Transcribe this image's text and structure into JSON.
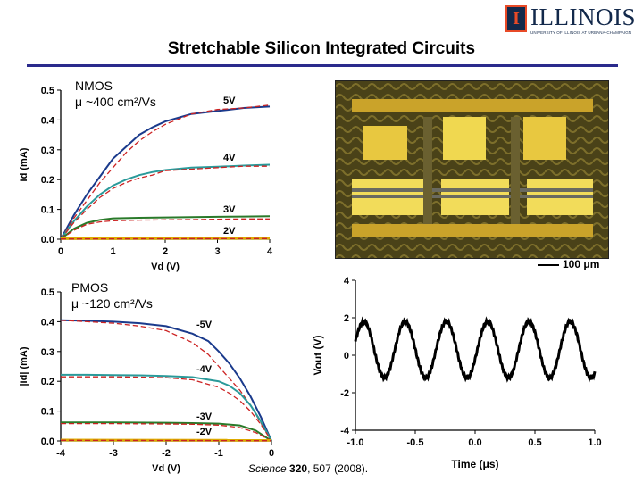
{
  "title": "Stretchable Silicon Integrated Circuits",
  "logo": {
    "word": "ILLINOIS",
    "subtitle": "UNIVERSITY OF ILLINOIS AT URBANA-CHAMPAIGN",
    "icon": "block-i-logo-icon"
  },
  "micrograph": {
    "scale_label": "100 μm"
  },
  "citation": {
    "journal": "Science",
    "volume": "320",
    "rest": ", 507 (2008)."
  },
  "colors": {
    "title_rule": "#2a2a8c",
    "measured": "#1a3a8c",
    "measured_teal": "#2a9a9a",
    "measured_green": "#2a7a2a",
    "model": "#cc2222",
    "zero": "#ddaa00"
  },
  "chart_data": [
    {
      "type": "line",
      "id": "nmos",
      "annotations": [
        "NMOS",
        "μ ~400 cm²/Vs"
      ],
      "xlabel": "Vd (V)",
      "ylabel": "Id (mA)",
      "xlim": [
        0,
        4
      ],
      "ylim": [
        0,
        0.5
      ],
      "xticks": [
        "0",
        "1",
        "2",
        "3",
        "4"
      ],
      "yticks": [
        "0.0",
        "0.1",
        "0.2",
        "0.3",
        "0.4",
        "0.5"
      ],
      "series": [
        {
          "name": "5V",
          "x": [
            0,
            0.25,
            0.5,
            0.75,
            1,
            1.25,
            1.5,
            1.75,
            2,
            2.5,
            3,
            3.5,
            4
          ],
          "measured": [
            0,
            0.08,
            0.15,
            0.21,
            0.27,
            0.31,
            0.35,
            0.375,
            0.395,
            0.42,
            0.43,
            0.44,
            0.445
          ],
          "model": [
            0,
            0.07,
            0.13,
            0.19,
            0.24,
            0.29,
            0.33,
            0.36,
            0.385,
            0.42,
            0.435,
            0.44,
            0.45
          ]
        },
        {
          "name": "4V",
          "x": [
            0,
            0.25,
            0.5,
            0.75,
            1,
            1.25,
            1.5,
            1.75,
            2,
            2.5,
            3,
            3.5,
            4
          ],
          "measured": [
            0,
            0.06,
            0.11,
            0.15,
            0.18,
            0.2,
            0.215,
            0.225,
            0.232,
            0.24,
            0.243,
            0.247,
            0.25
          ],
          "model": [
            0,
            0.055,
            0.1,
            0.14,
            0.17,
            0.19,
            0.205,
            0.215,
            0.23,
            0.235,
            0.24,
            0.245,
            0.245
          ]
        },
        {
          "name": "3V",
          "x": [
            0,
            0.25,
            0.5,
            0.75,
            1,
            1.5,
            2,
            2.5,
            3,
            3.5,
            4
          ],
          "measured": [
            0,
            0.035,
            0.055,
            0.065,
            0.07,
            0.072,
            0.073,
            0.074,
            0.075,
            0.076,
            0.077
          ],
          "model": [
            0,
            0.03,
            0.05,
            0.058,
            0.062,
            0.064,
            0.065,
            0.066,
            0.067,
            0.068,
            0.068
          ]
        },
        {
          "name": "2V",
          "x": [
            0,
            4
          ],
          "measured": [
            0.002,
            0.003
          ],
          "model": [
            0.001,
            0.002
          ]
        }
      ]
    },
    {
      "type": "line",
      "id": "pmos",
      "annotations": [
        "PMOS",
        "μ ~120 cm²/Vs"
      ],
      "xlabel": "Vd (V)",
      "ylabel": "|Id| (mA)",
      "xlim": [
        -4,
        0
      ],
      "ylim": [
        0,
        0.5
      ],
      "xticks": [
        "-4",
        "-3",
        "-2",
        "-1",
        "0"
      ],
      "yticks": [
        "0.0",
        "0.1",
        "0.2",
        "0.3",
        "0.4",
        "0.5"
      ],
      "series": [
        {
          "name": "-5V",
          "x": [
            -4,
            -3.5,
            -3,
            -2.5,
            -2,
            -1.5,
            -1.2,
            -1,
            -0.8,
            -0.6,
            -0.4,
            -0.2,
            0
          ],
          "measured": [
            0.405,
            0.403,
            0.4,
            0.395,
            0.385,
            0.36,
            0.335,
            0.3,
            0.26,
            0.21,
            0.15,
            0.08,
            0
          ],
          "model": [
            0.405,
            0.4,
            0.395,
            0.385,
            0.37,
            0.33,
            0.29,
            0.25,
            0.21,
            0.17,
            0.12,
            0.06,
            0
          ]
        },
        {
          "name": "-4V",
          "x": [
            -4,
            -3.5,
            -3,
            -2.5,
            -2,
            -1.5,
            -1,
            -0.8,
            -0.6,
            -0.4,
            -0.2,
            0
          ],
          "measured": [
            0.222,
            0.222,
            0.221,
            0.22,
            0.218,
            0.214,
            0.2,
            0.185,
            0.16,
            0.12,
            0.065,
            0
          ],
          "model": [
            0.215,
            0.215,
            0.215,
            0.214,
            0.212,
            0.205,
            0.18,
            0.16,
            0.135,
            0.1,
            0.055,
            0
          ]
        },
        {
          "name": "-3V",
          "x": [
            -4,
            -3,
            -2,
            -1.5,
            -1,
            -0.6,
            -0.3,
            0
          ],
          "measured": [
            0.062,
            0.062,
            0.061,
            0.06,
            0.058,
            0.052,
            0.035,
            0
          ],
          "model": [
            0.058,
            0.058,
            0.057,
            0.056,
            0.053,
            0.045,
            0.028,
            0
          ]
        },
        {
          "name": "-2V",
          "x": [
            -4,
            0
          ],
          "measured": [
            0.003,
            0.002
          ],
          "model": [
            0.002,
            0.001
          ]
        }
      ]
    },
    {
      "type": "line",
      "id": "vout",
      "xlabel": "Time (μs)",
      "ylabel": "Vout (V)",
      "xlim": [
        -1.0,
        1.0
      ],
      "ylim": [
        -4,
        4
      ],
      "xticks": [
        "-1.0",
        "-0.5",
        "0.0",
        "0.5",
        "1.0"
      ],
      "yticks": [
        "-4",
        "-2",
        "0",
        "2",
        "4"
      ],
      "signal": {
        "offset": 0.3,
        "amplitude": 1.5,
        "period_us": 0.345,
        "peak_at_us": -0.93
      }
    }
  ]
}
